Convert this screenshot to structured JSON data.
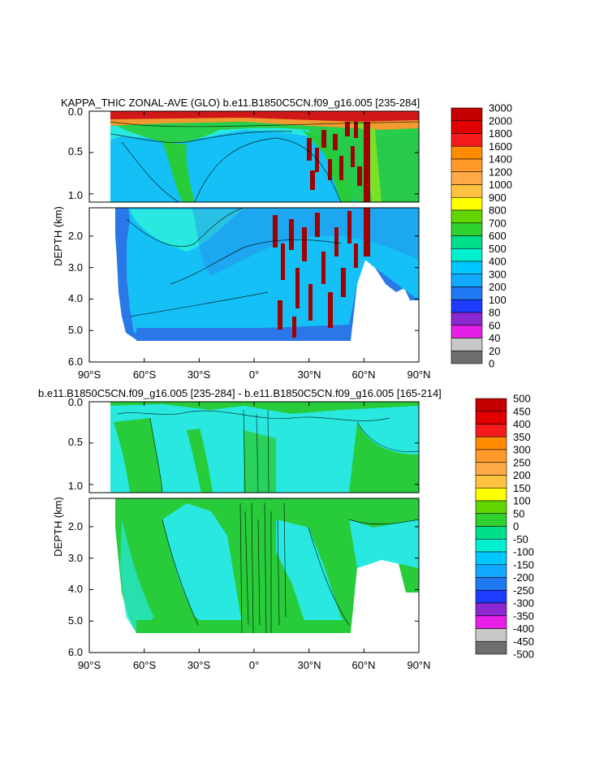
{
  "colors": {
    "deep": "#2a78e8",
    "mid": "#14c0f5",
    "light": "#28e8e0",
    "green": "#28cc3a",
    "lime": "#7ae028",
    "orange": "#f29a30",
    "red": "#d01818",
    "darkred": "#a00000",
    "land": "#ffffff"
  },
  "chart_data": [
    {
      "type": "heatmap",
      "title": "KAPPA_THIC ZONAL-AVE (GLO) b.e11.B1850C5CN.f09_g16.005 [235-284]",
      "xlabel": "",
      "ylabel": "DEPTH (km)",
      "x_ticks": [
        "90°S",
        "60°S",
        "30°S",
        "0°",
        "30°N",
        "60°N",
        "90°N"
      ],
      "x_tick_values": [
        -90,
        -60,
        -30,
        0,
        30,
        60,
        90
      ],
      "y_ticks_upper": [
        "0.0",
        "0.5",
        "1.0"
      ],
      "y_ticks_upper_values": [
        0.0,
        0.5,
        1.0
      ],
      "y_ticks_lower": [
        "2.0",
        "3.0",
        "4.0",
        "5.0",
        "6.0"
      ],
      "y_ticks_lower_values": [
        2.0,
        3.0,
        4.0,
        5.0,
        6.0
      ],
      "upper_depth_range": [
        0.0,
        1.1
      ],
      "lower_depth_range": [
        1.1,
        6.0
      ],
      "xlim": [
        -90,
        90
      ],
      "colorbar": {
        "levels": [
          "3000",
          "2000",
          "1800",
          "1600",
          "1400",
          "1200",
          "1000",
          "900",
          "800",
          "700",
          "600",
          "500",
          "400",
          "300",
          "200",
          "100",
          "80",
          "60",
          "40",
          "20",
          "0"
        ],
        "colors": [
          "#c40000",
          "#e00000",
          "#f21a1a",
          "#ff8c00",
          "#ff9a2a",
          "#ffaa44",
          "#ffc340",
          "#ffff00",
          "#62d600",
          "#2ed12e",
          "#00e08c",
          "#00f0d0",
          "#00c8ff",
          "#12a8ff",
          "#1e78f0",
          "#1e3cff",
          "#8c28d2",
          "#e61ee6",
          "#c8c8c8",
          "#6e6e6e"
        ]
      }
    },
    {
      "type": "heatmap",
      "title": "b.e11.B1850C5CN.f09_g16.005 [235-284] - b.e11.B1850C5CN.f09_g16.005 [165-214]",
      "xlabel": "",
      "ylabel": "DEPTH (km)",
      "x_ticks": [
        "90°S",
        "60°S",
        "30°S",
        "0°",
        "30°N",
        "60°N",
        "90°N"
      ],
      "x_tick_values": [
        -90,
        -60,
        -30,
        0,
        30,
        60,
        90
      ],
      "y_ticks_upper": [
        "0.0",
        "0.5",
        "1.0"
      ],
      "y_ticks_upper_values": [
        0.0,
        0.5,
        1.0
      ],
      "y_ticks_lower": [
        "2.0",
        "3.0",
        "4.0",
        "5.0",
        "6.0"
      ],
      "y_ticks_lower_values": [
        2.0,
        3.0,
        4.0,
        5.0,
        6.0
      ],
      "upper_depth_range": [
        0.0,
        1.1
      ],
      "lower_depth_range": [
        1.1,
        6.0
      ],
      "xlim": [
        -90,
        90
      ],
      "colorbar": {
        "levels": [
          "500",
          "450",
          "400",
          "350",
          "300",
          "250",
          "200",
          "150",
          "100",
          "50",
          "0",
          "-50",
          "-100",
          "-150",
          "-200",
          "-250",
          "-300",
          "-350",
          "-400",
          "-450",
          "-500"
        ],
        "colors": [
          "#c40000",
          "#e00000",
          "#f21a1a",
          "#ff8c00",
          "#ff9a2a",
          "#ffaa44",
          "#ffc340",
          "#ffff00",
          "#62d600",
          "#2ed12e",
          "#00e08c",
          "#00f0d0",
          "#00c8ff",
          "#12a8ff",
          "#1e78f0",
          "#1e3cff",
          "#8c28d2",
          "#e61ee6",
          "#c8c8c8",
          "#6e6e6e"
        ]
      }
    }
  ]
}
